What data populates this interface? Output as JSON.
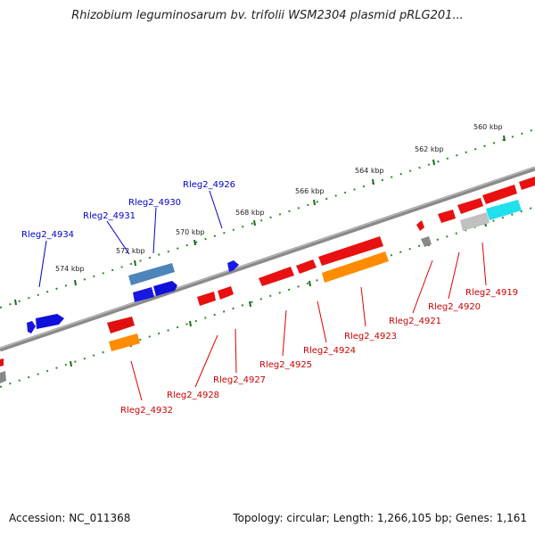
{
  "title": "Rhizobium leguminosarum bv. trifolii WSM2304 plasmid pRLG201...",
  "footer": {
    "accession": "Accession: NC_011368",
    "topology": "Topology: circular; Length: 1,266,105 bp; Genes: 1,161"
  },
  "map": {
    "tick_labels": [
      "560 kbp",
      "562 kbp",
      "564 kbp",
      "566 kbp",
      "568 kbp",
      "570 kbp",
      "572 kbp",
      "574 kbp"
    ],
    "forward_genes": [
      "Rleg2_4934",
      "Rleg2_4931",
      "Rleg2_4930",
      "Rleg2_4926"
    ],
    "reverse_genes": [
      "Rleg2_4932",
      "Rleg2_4928",
      "Rleg2_4927",
      "Rleg2_4925",
      "Rleg2_4924",
      "Rleg2_4923",
      "Rleg2_4921",
      "Rleg2_4920",
      "Rleg2_4919"
    ]
  },
  "colors": {
    "forward_label": "#0000cc",
    "reverse_label": "#cc0000",
    "backbone": "#888888",
    "tick_dot": "#1a7a1a"
  }
}
